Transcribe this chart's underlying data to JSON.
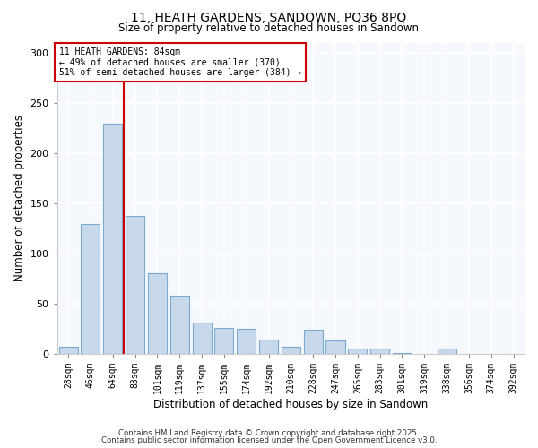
{
  "title": "11, HEATH GARDENS, SANDOWN, PO36 8PQ",
  "subtitle": "Size of property relative to detached houses in Sandown",
  "xlabel": "Distribution of detached houses by size in Sandown",
  "ylabel": "Number of detached properties",
  "bar_color": "#c8d8eb",
  "bar_edge_color": "#7aaace",
  "categories": [
    "28sqm",
    "46sqm",
    "64sqm",
    "83sqm",
    "101sqm",
    "119sqm",
    "137sqm",
    "155sqm",
    "174sqm",
    "192sqm",
    "210sqm",
    "228sqm",
    "247sqm",
    "265sqm",
    "283sqm",
    "301sqm",
    "319sqm",
    "338sqm",
    "356sqm",
    "374sqm",
    "392sqm"
  ],
  "values": [
    7,
    129,
    229,
    137,
    80,
    58,
    31,
    26,
    25,
    14,
    7,
    24,
    13,
    5,
    5,
    1,
    0,
    5,
    0,
    0,
    0
  ],
  "vline_x_index": 3,
  "vline_color": "#cc0000",
  "annotation_title": "11 HEATH GARDENS: 84sqm",
  "annotation_line1": "← 49% of detached houses are smaller (370)",
  "annotation_line2": "51% of semi-detached houses are larger (384) →",
  "annotation_box_color": "#ffffff",
  "annotation_box_edge_color": "#cc0000",
  "ylim": [
    0,
    310
  ],
  "yticks": [
    0,
    50,
    100,
    150,
    200,
    250,
    300
  ],
  "footer1": "Contains HM Land Registry data © Crown copyright and database right 2025.",
  "footer2": "Contains public sector information licensed under the Open Government Licence v3.0.",
  "bg_color": "#ffffff",
  "plot_bg_color": "#f5f8fd"
}
